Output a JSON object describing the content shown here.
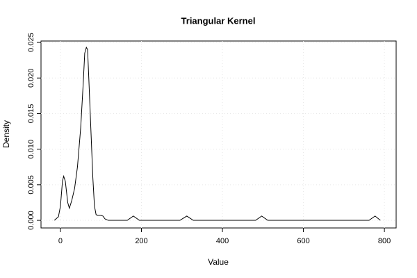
{
  "chart_data": {
    "type": "line",
    "title": "Triangular Kernel",
    "x_label": "Value",
    "y_label": "Density",
    "x": [
      -15,
      -5,
      0,
      5,
      8,
      12,
      18,
      22,
      28,
      35,
      42,
      50,
      56,
      60,
      64,
      67,
      70,
      75,
      80,
      84,
      88,
      92,
      100,
      105,
      110,
      118,
      165,
      180,
      195,
      295,
      312,
      328,
      482,
      497,
      512,
      762,
      777,
      790
    ],
    "values": [
      0,
      0.0005,
      0.002,
      0.0055,
      0.0062,
      0.0055,
      0.0025,
      0.0017,
      0.0028,
      0.0045,
      0.0075,
      0.013,
      0.019,
      0.0235,
      0.0243,
      0.024,
      0.02,
      0.013,
      0.006,
      0.002,
      0.0008,
      0.0007,
      0.0007,
      0.0006,
      0.0002,
      0,
      0,
      0.0006,
      0,
      0,
      0.0006,
      0,
      0,
      0.0006,
      0,
      0,
      0.0006,
      0
    ],
    "color": "#000000",
    "xlim": [
      -48,
      829
    ],
    "xticks": [
      0,
      200,
      400,
      600,
      800
    ],
    "ylim": [
      -0.00107,
      0.0252
    ],
    "yticks": [
      {
        "value": 0,
        "label": "0.000"
      },
      {
        "value": 0.005,
        "label": "0.005"
      },
      {
        "value": 0.01,
        "label": "0.010"
      },
      {
        "value": 0.015,
        "label": "0.015"
      },
      {
        "value": 0.02,
        "label": "0.020"
      },
      {
        "value": 0.025,
        "label": "0.025"
      }
    ],
    "grid": true
  }
}
